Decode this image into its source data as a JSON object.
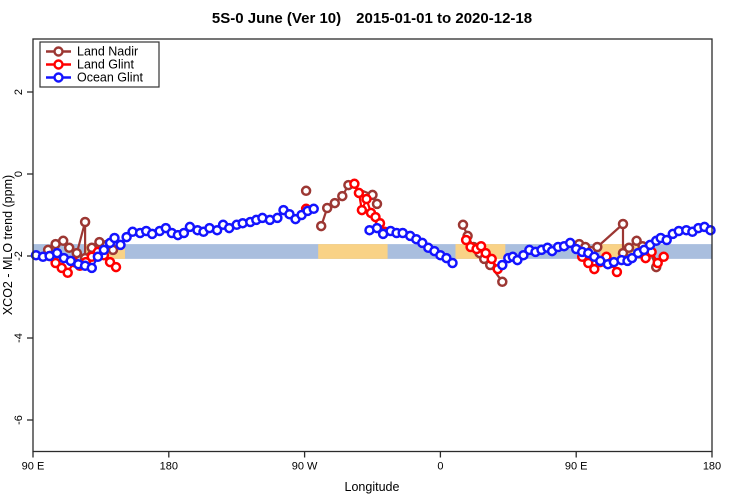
{
  "title": "5S-0 June (Ver 10) 2015-01-01 to 2020-12-18",
  "chart_data": {
    "type": "scatter",
    "xlabel": "Longitude",
    "ylabel": "XCO2 - MLO trend (ppm)",
    "x_axis_deg_range": [
      90,
      540
    ],
    "ylim": [
      -6.8,
      3.3
    ],
    "grid": false,
    "legend_position": "top-left",
    "x_ticks": [
      {
        "deg": 90,
        "label": "90 E"
      },
      {
        "deg": 180,
        "label": "180"
      },
      {
        "deg": 270,
        "label": "90 W"
      },
      {
        "deg": 360,
        "label": "0"
      },
      {
        "deg": 450,
        "label": "90 E"
      },
      {
        "deg": 540,
        "label": "180"
      }
    ],
    "y_ticks": [
      2,
      0,
      -2,
      -4,
      -6
    ],
    "band": {
      "y_range_ppm": [
        -1.71,
        -2.07
      ],
      "ocean_color": "#A9BEDE",
      "land_color": "#F9D286",
      "land_segments_deg": [
        [
          124,
          151
        ],
        [
          279,
          325
        ],
        [
          370,
          403
        ],
        [
          466,
          492
        ]
      ]
    },
    "legend": [
      {
        "label": "Land Nadir",
        "color": "#9C3733"
      },
      {
        "label": "Land Glint",
        "color": "#FF0000"
      },
      {
        "label": "Ocean Glint",
        "color": "#1414FF"
      }
    ],
    "series": [
      {
        "name": "Land Nadir",
        "color": "#9C3733",
        "segments": [
          [
            [
              100,
              -1.85
            ],
            [
              105,
              -1.71
            ],
            [
              110,
              -1.63
            ],
            [
              114,
              -1.8
            ],
            [
              119,
              -1.93
            ],
            [
              124.5,
              -1.17
            ],
            [
              124.5,
              -2.05
            ],
            [
              129,
              -1.8
            ],
            [
              134,
              -1.66
            ],
            [
              139,
              -1.73
            ],
            [
              143,
              -1.85
            ]
          ],
          [
            [
              271,
              -0.41
            ]
          ],
          [
            [
              281,
              -1.27
            ],
            [
              285,
              -0.83
            ],
            [
              290,
              -0.71
            ],
            [
              295,
              -0.54
            ],
            [
              299,
              -0.27
            ],
            [
              315,
              -0.51
            ],
            [
              318,
              -0.73
            ]
          ],
          [
            [
              375,
              -1.24
            ],
            [
              378,
              -1.51
            ],
            [
              382,
              -1.78
            ],
            [
              386,
              -1.93
            ],
            [
              389,
              -2.07
            ],
            [
              393,
              -2.22
            ],
            [
              401,
              -2.63
            ]
          ],
          [
            [
              452,
              -1.71
            ],
            [
              456,
              -1.78
            ],
            [
              460,
              -1.88
            ],
            [
              464,
              -1.78
            ],
            [
              481,
              -1.22
            ],
            [
              481,
              -1.93
            ],
            [
              485,
              -1.8
            ],
            [
              490,
              -1.63
            ],
            [
              494,
              -1.76
            ],
            [
              499,
              -1.88
            ],
            [
              503,
              -2.27
            ]
          ]
        ]
      },
      {
        "name": "Land Glint",
        "color": "#FF0000",
        "segments": [
          [
            [
              101,
              -2.0
            ],
            [
              105,
              -2.17
            ],
            [
              109,
              -2.29
            ],
            [
              113,
              -2.41
            ],
            [
              117,
              -2.15
            ],
            [
              121,
              -2.24
            ],
            [
              125,
              -2.15
            ],
            [
              129,
              -2.02
            ],
            [
              133,
              -1.9
            ],
            [
              137,
              -1.98
            ],
            [
              141,
              -2.15
            ],
            [
              145,
              -2.27
            ]
          ],
          [
            [
              271,
              -0.85
            ]
          ],
          [
            [
              303,
              -0.24
            ],
            [
              306,
              -0.46
            ],
            [
              308,
              -0.88
            ],
            [
              311,
              -0.61
            ],
            [
              314,
              -0.95
            ],
            [
              317,
              -1.05
            ],
            [
              320,
              -1.2
            ],
            [
              323,
              -1.41
            ]
          ],
          [
            [
              377,
              -1.61
            ],
            [
              380,
              -1.78
            ],
            [
              384,
              -1.83
            ],
            [
              387,
              -1.76
            ],
            [
              390,
              -1.93
            ],
            [
              394,
              -2.07
            ],
            [
              398,
              -2.32
            ]
          ],
          [
            [
              454,
              -2.02
            ],
            [
              458,
              -2.17
            ],
            [
              462,
              -2.32
            ],
            [
              466,
              -2.15
            ],
            [
              470,
              -2.02
            ],
            [
              473,
              -2.17
            ],
            [
              477,
              -2.39
            ]
          ],
          [
            [
              492,
              -1.93
            ],
            [
              496,
              -2.05
            ],
            [
              500,
              -1.9
            ],
            [
              504,
              -2.17
            ],
            [
              508,
              -2.02
            ]
          ]
        ]
      },
      {
        "name": "Ocean Glint",
        "color": "#1414FF",
        "segments": [
          [
            [
              92,
              -1.98
            ],
            [
              96.6,
              -2.02
            ],
            [
              101,
              -2.0
            ],
            [
              106,
              -1.93
            ],
            [
              110.5,
              -2.05
            ],
            [
              115,
              -2.12
            ],
            [
              120,
              -2.2
            ],
            [
              124.5,
              -2.24
            ],
            [
              129,
              -2.29
            ],
            [
              133,
              -2.02
            ],
            [
              137,
              -1.85
            ],
            [
              141,
              -1.68
            ],
            [
              144,
              -1.56
            ],
            [
              148,
              -1.73
            ],
            [
              152,
              -1.54
            ],
            [
              156,
              -1.41
            ],
            [
              161,
              -1.44
            ],
            [
              165,
              -1.39
            ],
            [
              169,
              -1.46
            ],
            [
              174,
              -1.39
            ],
            [
              178,
              -1.32
            ],
            [
              182,
              -1.44
            ],
            [
              186,
              -1.49
            ],
            [
              190,
              -1.44
            ],
            [
              194,
              -1.29
            ],
            [
              199,
              -1.37
            ],
            [
              203,
              -1.41
            ],
            [
              207,
              -1.32
            ],
            [
              212,
              -1.37
            ],
            [
              216,
              -1.24
            ],
            [
              220,
              -1.32
            ],
            [
              225,
              -1.24
            ],
            [
              229,
              -1.2
            ],
            [
              234,
              -1.17
            ],
            [
              238,
              -1.12
            ],
            [
              242,
              -1.07
            ],
            [
              247,
              -1.12
            ],
            [
              252,
              -1.07
            ],
            [
              256,
              -0.88
            ],
            [
              260,
              -0.98
            ],
            [
              264,
              -1.1
            ],
            [
              268,
              -1.0
            ],
            [
              272,
              -0.9
            ],
            [
              276,
              -0.85
            ]
          ],
          [
            [
              313,
              -1.37
            ],
            [
              318,
              -1.32
            ],
            [
              322,
              -1.46
            ],
            [
              327,
              -1.39
            ],
            [
              331,
              -1.44
            ],
            [
              335,
              -1.44
            ],
            [
              340,
              -1.51
            ],
            [
              344,
              -1.59
            ],
            [
              348,
              -1.68
            ],
            [
              352,
              -1.8
            ],
            [
              356,
              -1.88
            ],
            [
              360,
              -1.98
            ],
            [
              364,
              -2.05
            ],
            [
              368,
              -2.17
            ]
          ],
          [
            [
              401,
              -2.22
            ],
            [
              405,
              -2.05
            ],
            [
              408,
              -2.02
            ],
            [
              411,
              -2.1
            ],
            [
              415,
              -1.98
            ],
            [
              419,
              -1.85
            ],
            [
              423,
              -1.9
            ],
            [
              427,
              -1.85
            ],
            [
              431,
              -1.8
            ],
            [
              434,
              -1.88
            ],
            [
              438,
              -1.78
            ],
            [
              442,
              -1.76
            ],
            [
              446,
              -1.68
            ],
            [
              450,
              -1.83
            ],
            [
              454,
              -1.9
            ],
            [
              458,
              -1.93
            ],
            [
              462,
              -2.02
            ],
            [
              466,
              -2.12
            ],
            [
              471,
              -2.2
            ],
            [
              475,
              -2.15
            ],
            [
              480,
              -2.1
            ],
            [
              484,
              -2.12
            ],
            [
              487,
              -2.05
            ],
            [
              491,
              -1.93
            ],
            [
              495,
              -1.85
            ],
            [
              499,
              -1.73
            ],
            [
              503,
              -1.63
            ],
            [
              506,
              -1.56
            ],
            [
              510,
              -1.61
            ],
            [
              514,
              -1.46
            ],
            [
              518,
              -1.39
            ],
            [
              523,
              -1.37
            ],
            [
              527,
              -1.41
            ],
            [
              531,
              -1.32
            ],
            [
              535,
              -1.29
            ],
            [
              539,
              -1.37
            ]
          ]
        ]
      }
    ]
  }
}
